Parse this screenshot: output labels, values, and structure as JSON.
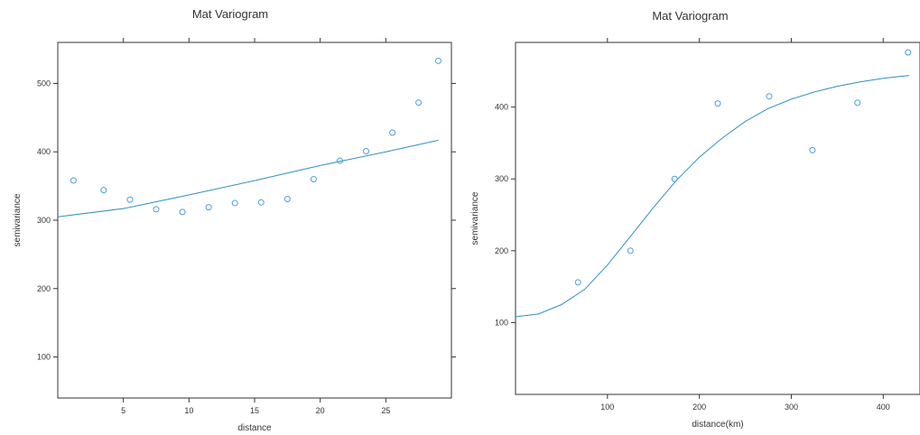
{
  "colors": {
    "points": "#4a9fd6",
    "line": "#2f8fc4",
    "axis": "#333333"
  },
  "chart_data": [
    {
      "type": "scatter",
      "title": "Mat Variogram",
      "xlabel": "distance",
      "ylabel": "semivariance",
      "xlim": [
        0,
        30
      ],
      "ylim": [
        40,
        560
      ],
      "xticks": [
        5,
        10,
        15,
        20,
        25
      ],
      "yticks": [
        100,
        200,
        300,
        400,
        500
      ],
      "points": {
        "x": [
          1.2,
          3.5,
          5.5,
          7.5,
          9.5,
          11.5,
          13.5,
          15.5,
          17.5,
          19.5,
          21.5,
          23.5,
          25.5,
          27.5,
          29.0
        ],
        "y": [
          358,
          344,
          330,
          316,
          312,
          319,
          325,
          326,
          331,
          360,
          387,
          401,
          428,
          472,
          533
        ]
      },
      "fit": {
        "x": [
          0,
          5,
          10,
          15,
          20,
          25,
          29
        ],
        "y": [
          305,
          317,
          337,
          358,
          380,
          400,
          417
        ]
      },
      "grid": false,
      "legend": "none"
    },
    {
      "type": "scatter",
      "title": "Mat Variogram",
      "xlabel": "distance(km)",
      "ylabel": "semivariance",
      "xlim": [
        0,
        440
      ],
      "ylim": [
        0,
        490
      ],
      "xticks": [
        100,
        200,
        300,
        400
      ],
      "yticks": [
        100,
        200,
        300,
        400
      ],
      "points": {
        "x": [
          68,
          125,
          173,
          220,
          276,
          323,
          372,
          427
        ],
        "y": [
          156,
          200,
          300,
          405,
          415,
          340,
          406,
          476
        ]
      },
      "fit": {
        "x": [
          0,
          25,
          50,
          75,
          100,
          125,
          150,
          175,
          200,
          225,
          250,
          275,
          300,
          325,
          350,
          375,
          400,
          428
        ],
        "y": [
          108,
          112,
          125,
          146,
          180,
          220,
          260,
          298,
          330,
          357,
          380,
          398,
          411,
          421,
          429,
          435,
          440,
          444
        ]
      },
      "grid": false,
      "legend": "none"
    }
  ]
}
